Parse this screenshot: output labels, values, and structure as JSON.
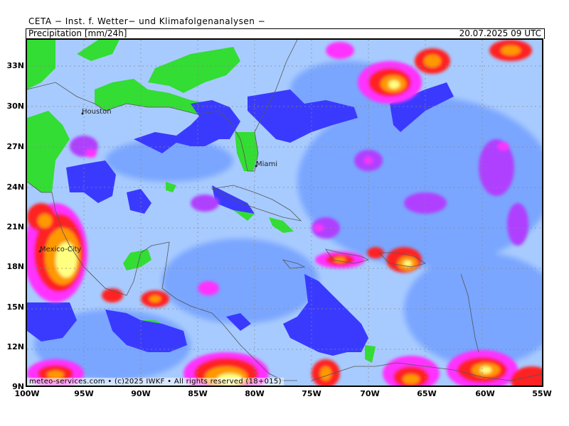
{
  "header": {
    "title": "CETA − Inst. f. Wetter− und Klimafolgenanalysen −",
    "parameter": "Precipitation [mm/24h]",
    "valid_time": "20.07.2025 09 UTC"
  },
  "footer": {
    "credit": "meteo-services.com • (c)2025 IWKF • All rights reserved (18+015)"
  },
  "axes": {
    "latitudes": [
      "33N",
      "30N",
      "27N",
      "24N",
      "21N",
      "18N",
      "15N",
      "12N",
      "9N"
    ],
    "longitudes": [
      "100W",
      "95W",
      "90W",
      "85W",
      "80W",
      "75W",
      "70W",
      "65W",
      "60W",
      "55W"
    ]
  },
  "cities": [
    {
      "name": "Houston"
    },
    {
      "name": "Miami"
    },
    {
      "name": "Mexico-City"
    }
  ],
  "colors": {
    "land_green": "#33dd33",
    "light_blue": "#a8cbff",
    "mid_blue": "#7aa6ff",
    "deep_blue": "#3a3aff",
    "purple": "#b040ff",
    "magenta": "#ff30ff",
    "red": "#ff2020",
    "orange": "#ff9900",
    "yellow": "#ffff80"
  }
}
